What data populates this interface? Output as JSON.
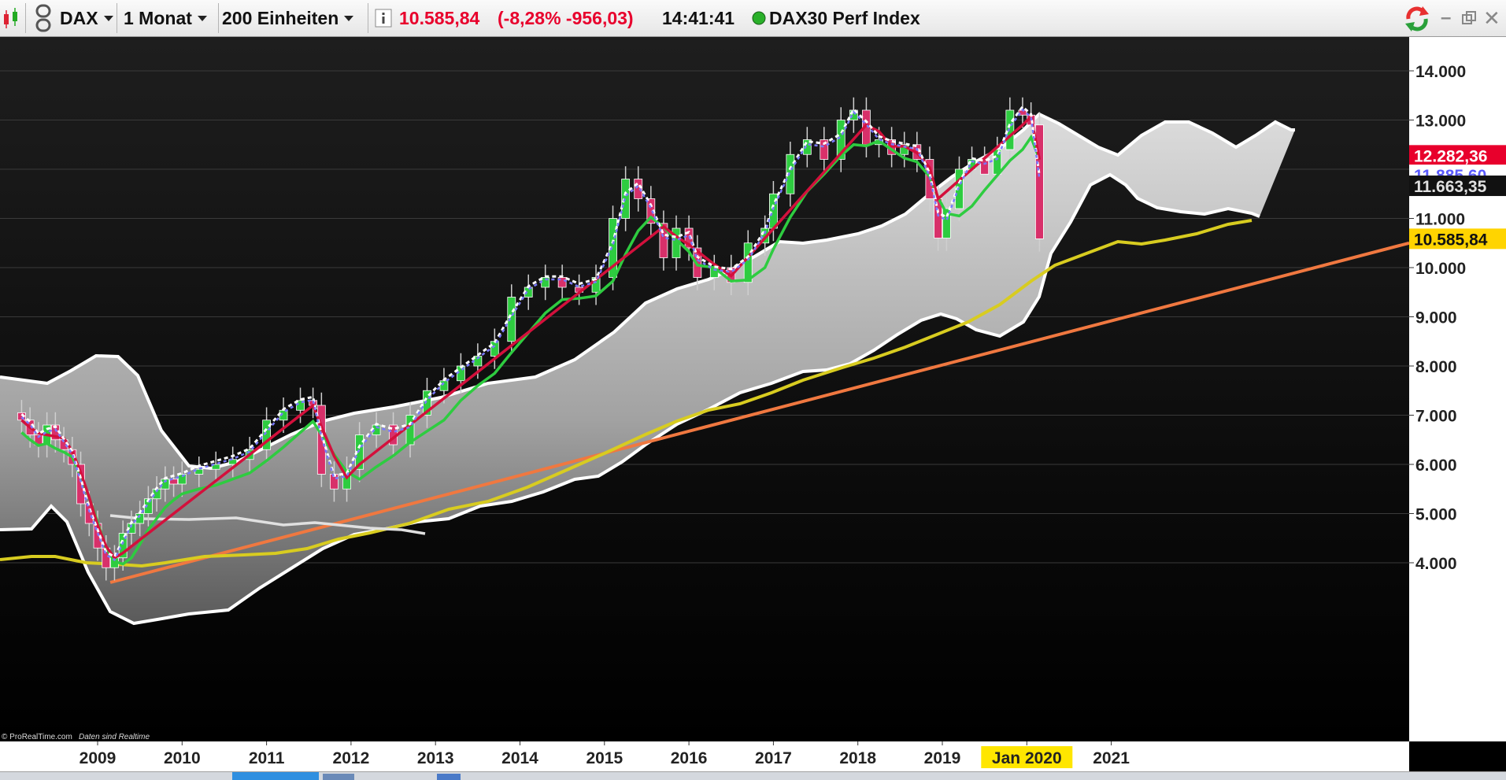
{
  "toolbar": {
    "instrument": "DAX",
    "timeframe": "1 Monat",
    "units": "200 Einheiten",
    "info_icon": "info-icon",
    "price": "10.585,84",
    "change": "(-8,28% -956,03)",
    "time": "14:41:41",
    "name": "DAX30 Perf Index",
    "colors": {
      "price": "#e8002c",
      "status_dot": "#2ab02a"
    }
  },
  "chart": {
    "watermark_brand": "© ProRealTime.com",
    "watermark_note": "Daten sind Realtime",
    "price_tags": [
      {
        "label": "12.282,36",
        "value": 12282.36,
        "bg": "#e8002c",
        "fg": "#ffffff"
      },
      {
        "label": "11.885,60",
        "value": 11885.6,
        "bg": "#ffffff",
        "fg": "#5a5aff"
      },
      {
        "label": "11.663,35",
        "value": 11663.35,
        "bg": "#111111",
        "fg": "#e0e0e0"
      },
      {
        "label": "10.585,84",
        "value": 10585.84,
        "bg": "#ffd400",
        "fg": "#111111"
      }
    ]
  },
  "chart_data": {
    "type": "candlestick",
    "y_ticks": [
      {
        "label": "4.000",
        "value": 4000
      },
      {
        "label": "5.000",
        "value": 5000
      },
      {
        "label": "6.000",
        "value": 6000
      },
      {
        "label": "7.000",
        "value": 7000
      },
      {
        "label": "8.000",
        "value": 8000
      },
      {
        "label": "9.000",
        "value": 9000
      },
      {
        "label": "10.000",
        "value": 10000
      },
      {
        "label": "11.000",
        "value": 11000
      },
      {
        "label": "12.000",
        "value": 12000
      },
      {
        "label": "13.000",
        "value": 13000
      },
      {
        "label": "14.000",
        "value": 14000
      }
    ],
    "ylim": [
      3200,
      14900
    ],
    "x_ticks": [
      {
        "label": "2009",
        "value": 2009.0
      },
      {
        "label": "2010",
        "value": 2010.0
      },
      {
        "label": "2011",
        "value": 2011.0
      },
      {
        "label": "2012",
        "value": 2012.0
      },
      {
        "label": "2013",
        "value": 2013.0
      },
      {
        "label": "2014",
        "value": 2014.0
      },
      {
        "label": "2015",
        "value": 2015.0
      },
      {
        "label": "2016",
        "value": 2016.0
      },
      {
        "label": "2017",
        "value": 2017.0
      },
      {
        "label": "2018",
        "value": 2018.0
      },
      {
        "label": "2019",
        "value": 2019.0
      },
      {
        "label": "Jan 2020",
        "value": 2020.0,
        "highlight": true
      },
      {
        "label": "2021",
        "value": 2021.0
      }
    ],
    "xlim": [
      2008.05,
      2021.7
    ],
    "candles": [
      {
        "t": 2008.1,
        "c": 6900
      },
      {
        "t": 2008.2,
        "c": 6600
      },
      {
        "t": 2008.3,
        "c": 6400
      },
      {
        "t": 2008.4,
        "c": 6800
      },
      {
        "t": 2008.5,
        "c": 6500
      },
      {
        "t": 2008.6,
        "c": 6300
      },
      {
        "t": 2008.7,
        "c": 6000
      },
      {
        "t": 2008.8,
        "c": 5200
      },
      {
        "t": 2008.9,
        "c": 4800
      },
      {
        "t": 2009.0,
        "c": 4300
      },
      {
        "t": 2009.1,
        "c": 3900
      },
      {
        "t": 2009.2,
        "c": 4100
      },
      {
        "t": 2009.3,
        "c": 4600
      },
      {
        "t": 2009.4,
        "c": 4800
      },
      {
        "t": 2009.5,
        "c": 5000
      },
      {
        "t": 2009.6,
        "c": 5300
      },
      {
        "t": 2009.7,
        "c": 5500
      },
      {
        "t": 2009.8,
        "c": 5700
      },
      {
        "t": 2009.9,
        "c": 5600
      },
      {
        "t": 2010.0,
        "c": 5800
      },
      {
        "t": 2010.2,
        "c": 5900
      },
      {
        "t": 2010.4,
        "c": 6000
      },
      {
        "t": 2010.6,
        "c": 6100
      },
      {
        "t": 2010.8,
        "c": 6300
      },
      {
        "t": 2011.0,
        "c": 6900
      },
      {
        "t": 2011.2,
        "c": 7100
      },
      {
        "t": 2011.4,
        "c": 7300
      },
      {
        "t": 2011.55,
        "c": 7200
      },
      {
        "t": 2011.65,
        "c": 5800
      },
      {
        "t": 2011.8,
        "c": 5500
      },
      {
        "t": 2011.95,
        "c": 5900
      },
      {
        "t": 2012.1,
        "c": 6600
      },
      {
        "t": 2012.3,
        "c": 6800
      },
      {
        "t": 2012.5,
        "c": 6400
      },
      {
        "t": 2012.7,
        "c": 7000
      },
      {
        "t": 2012.9,
        "c": 7500
      },
      {
        "t": 2013.1,
        "c": 7700
      },
      {
        "t": 2013.3,
        "c": 8000
      },
      {
        "t": 2013.5,
        "c": 8200
      },
      {
        "t": 2013.7,
        "c": 8500
      },
      {
        "t": 2013.9,
        "c": 9400
      },
      {
        "t": 2014.1,
        "c": 9600
      },
      {
        "t": 2014.3,
        "c": 9800
      },
      {
        "t": 2014.5,
        "c": 9600
      },
      {
        "t": 2014.7,
        "c": 9500
      },
      {
        "t": 2014.9,
        "c": 9800
      },
      {
        "t": 2015.1,
        "c": 11000
      },
      {
        "t": 2015.25,
        "c": 11800
      },
      {
        "t": 2015.4,
        "c": 11400
      },
      {
        "t": 2015.55,
        "c": 10900
      },
      {
        "t": 2015.7,
        "c": 10200
      },
      {
        "t": 2015.85,
        "c": 10800
      },
      {
        "t": 2016.0,
        "c": 10400
      },
      {
        "t": 2016.1,
        "c": 9800
      },
      {
        "t": 2016.3,
        "c": 10000
      },
      {
        "t": 2016.5,
        "c": 9700
      },
      {
        "t": 2016.7,
        "c": 10500
      },
      {
        "t": 2016.9,
        "c": 10800
      },
      {
        "t": 2017.0,
        "c": 11500
      },
      {
        "t": 2017.2,
        "c": 12300
      },
      {
        "t": 2017.4,
        "c": 12600
      },
      {
        "t": 2017.6,
        "c": 12200
      },
      {
        "t": 2017.8,
        "c": 13000
      },
      {
        "t": 2017.95,
        "c": 13200
      },
      {
        "t": 2018.1,
        "c": 12500
      },
      {
        "t": 2018.25,
        "c": 12600
      },
      {
        "t": 2018.4,
        "c": 12300
      },
      {
        "t": 2018.55,
        "c": 12500
      },
      {
        "t": 2018.7,
        "c": 12200
      },
      {
        "t": 2018.85,
        "c": 11400
      },
      {
        "t": 2018.95,
        "c": 10600
      },
      {
        "t": 2019.05,
        "c": 11200
      },
      {
        "t": 2019.2,
        "c": 12000
      },
      {
        "t": 2019.35,
        "c": 12200
      },
      {
        "t": 2019.5,
        "c": 11900
      },
      {
        "t": 2019.65,
        "c": 12400
      },
      {
        "t": 2019.8,
        "c": 13200
      },
      {
        "t": 2019.95,
        "c": 13100
      },
      {
        "t": 2020.05,
        "c": 12900
      },
      {
        "t": 2020.15,
        "c": 10585.84
      }
    ],
    "series": [
      {
        "color": "#2ecc40"
      },
      {
        "color": "#d6c81a"
      },
      {
        "color": "#e8eaf0"
      },
      {
        "color": "#ff8040"
      }
    ]
  },
  "statusbar": {
    "visible": true
  }
}
